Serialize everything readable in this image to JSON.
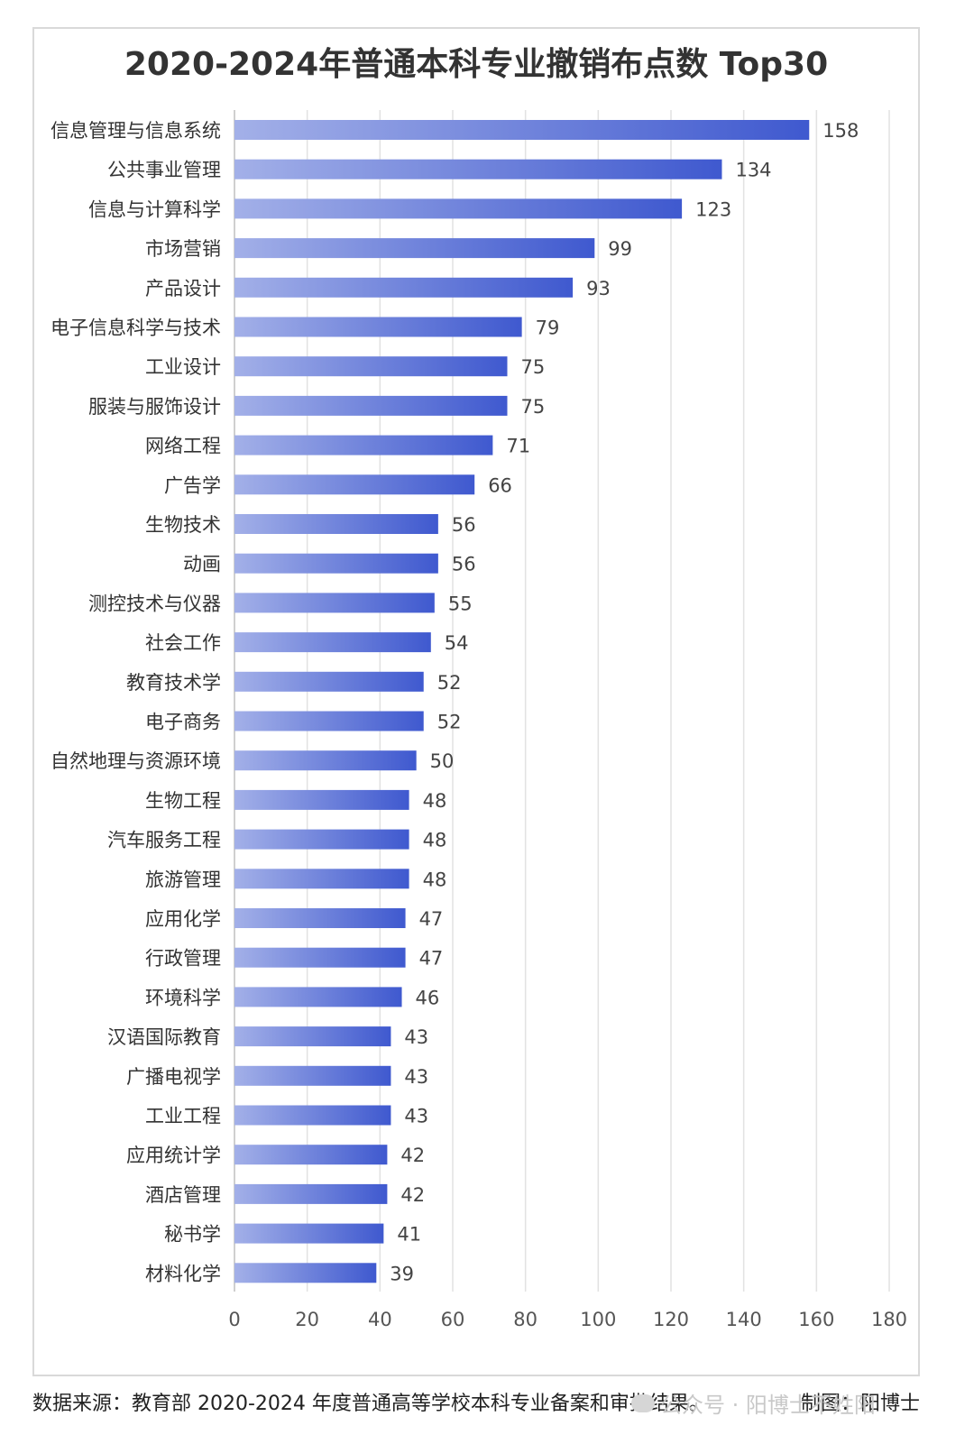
{
  "chart_data": {
    "type": "bar",
    "orientation": "horizontal",
    "title": "2020-2024年普通本科专业撤销布点数 Top30",
    "categories": [
      "信息管理与信息系统",
      "公共事业管理",
      "信息与计算科学",
      "市场营销",
      "产品设计",
      "电子信息科学与技术",
      "工业设计",
      "服装与服饰设计",
      "网络工程",
      "广告学",
      "生物技术",
      "动画",
      "测控技术与仪器",
      "社会工作",
      "教育技术学",
      "电子商务",
      "自然地理与资源环境",
      "生物工程",
      "汽车服务工程",
      "旅游管理",
      "应用化学",
      "行政管理",
      "环境科学",
      "汉语国际教育",
      "广播电视学",
      "工业工程",
      "应用统计学",
      "酒店管理",
      "秘书学",
      "材料化学"
    ],
    "values": [
      158,
      134,
      123,
      99,
      93,
      79,
      75,
      75,
      71,
      66,
      56,
      56,
      55,
      54,
      52,
      52,
      50,
      48,
      48,
      48,
      47,
      47,
      46,
      43,
      43,
      43,
      42,
      42,
      41,
      39
    ],
    "xlim": [
      0,
      180
    ],
    "xticks": [
      0,
      20,
      40,
      60,
      80,
      100,
      120,
      140,
      160,
      180
    ],
    "grid": true,
    "data_labels": true,
    "bar_gradient": [
      "#a3b0e8",
      "#3f59cf"
    ],
    "xlabel": "",
    "ylabel": ""
  },
  "footer": {
    "source": "数据来源：教育部 2020-2024 年度普通高等学校本科专业备案和审批结果。",
    "credit": "制图：阳博士"
  },
  "watermark": {
    "text": "公众号 · 阳博士不姓阳",
    "icon": "wechat-icon"
  }
}
